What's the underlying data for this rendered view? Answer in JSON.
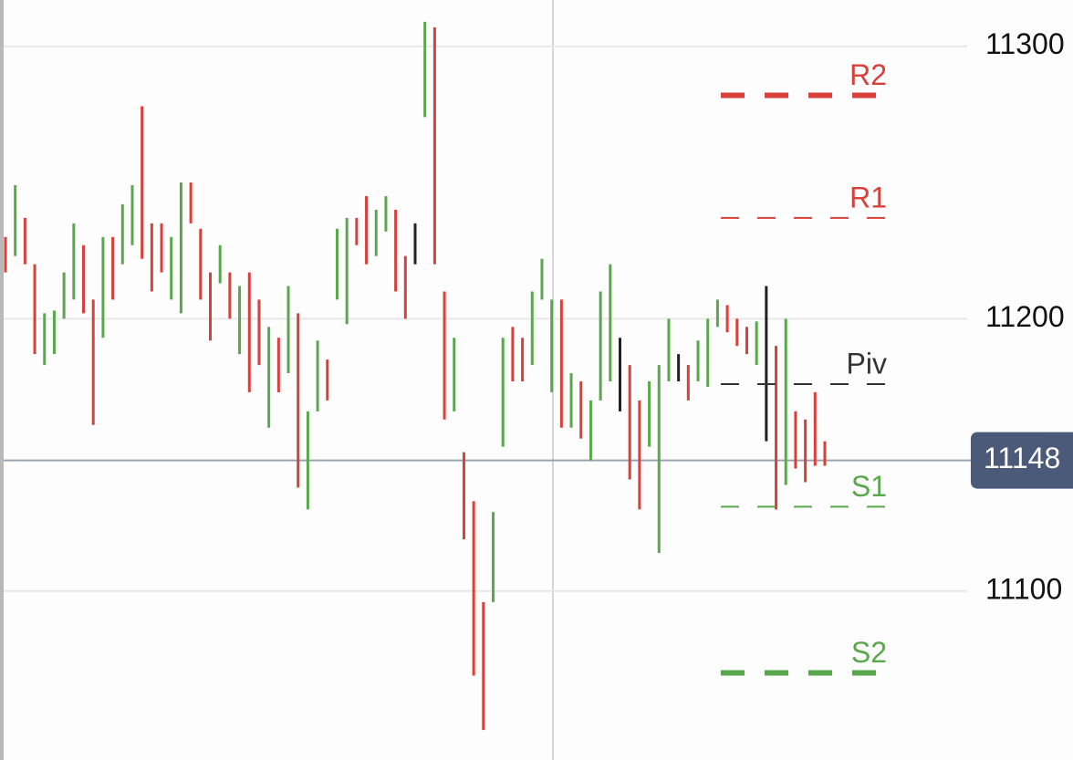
{
  "chart_data": {
    "type": "ohlc",
    "ylim": [
      11038,
      11317
    ],
    "yticks": [
      11100,
      11200,
      11300
    ],
    "grid": true,
    "palette": {
      "up": "#5aa84c",
      "down": "#d9403a",
      "flat": "#222222"
    },
    "bars": [
      {
        "high": 11230,
        "low": 11217,
        "dir": "down"
      },
      {
        "high": 11249,
        "low": 11223,
        "dir": "up"
      },
      {
        "high": 11237,
        "low": 11220,
        "dir": "down"
      },
      {
        "high": 11220,
        "low": 11187,
        "dir": "down"
      },
      {
        "high": 11202,
        "low": 11183,
        "dir": "up"
      },
      {
        "high": 11203,
        "low": 11187,
        "dir": "up"
      },
      {
        "high": 11217,
        "low": 11200,
        "dir": "up"
      },
      {
        "high": 11235,
        "low": 11207,
        "dir": "up"
      },
      {
        "high": 11227,
        "low": 11202,
        "dir": "down"
      },
      {
        "high": 11207,
        "low": 11161,
        "dir": "down"
      },
      {
        "high": 11230,
        "low": 11193,
        "dir": "up"
      },
      {
        "high": 11230,
        "low": 11207,
        "dir": "down"
      },
      {
        "high": 11242,
        "low": 11220,
        "dir": "up"
      },
      {
        "high": 11249,
        "low": 11227,
        "dir": "up"
      },
      {
        "high": 11278,
        "low": 11222,
        "dir": "down"
      },
      {
        "high": 11235,
        "low": 11210,
        "dir": "down"
      },
      {
        "high": 11235,
        "low": 11217,
        "dir": "down"
      },
      {
        "high": 11230,
        "low": 11207,
        "dir": "up"
      },
      {
        "high": 11250,
        "low": 11202,
        "dir": "up"
      },
      {
        "high": 11250,
        "low": 11235,
        "dir": "down"
      },
      {
        "high": 11233,
        "low": 11207,
        "dir": "down"
      },
      {
        "high": 11217,
        "low": 11192,
        "dir": "down"
      },
      {
        "high": 11227,
        "low": 11213,
        "dir": "up"
      },
      {
        "high": 11217,
        "low": 11200,
        "dir": "down"
      },
      {
        "high": 11212,
        "low": 11187,
        "dir": "up"
      },
      {
        "high": 11217,
        "low": 11173,
        "dir": "down"
      },
      {
        "high": 11207,
        "low": 11183,
        "dir": "down"
      },
      {
        "high": 11197,
        "low": 11160,
        "dir": "up"
      },
      {
        "high": 11193,
        "low": 11173,
        "dir": "down"
      },
      {
        "high": 11212,
        "low": 11180,
        "dir": "up"
      },
      {
        "high": 11202,
        "low": 11138,
        "dir": "down"
      },
      {
        "high": 11166,
        "low": 11130,
        "dir": "up"
      },
      {
        "high": 11192,
        "low": 11166,
        "dir": "up"
      },
      {
        "high": 11185,
        "low": 11170,
        "dir": "down"
      },
      {
        "high": 11233,
        "low": 11207,
        "dir": "up"
      },
      {
        "high": 11237,
        "low": 11198,
        "dir": "up"
      },
      {
        "high": 11237,
        "low": 11227,
        "dir": "down"
      },
      {
        "high": 11245,
        "low": 11220,
        "dir": "down"
      },
      {
        "high": 11240,
        "low": 11223,
        "dir": "up"
      },
      {
        "high": 11245,
        "low": 11232,
        "dir": "up"
      },
      {
        "high": 11240,
        "low": 11210,
        "dir": "down"
      },
      {
        "high": 11223,
        "low": 11200,
        "dir": "down"
      },
      {
        "high": 11235,
        "low": 11220,
        "dir": "flat"
      },
      {
        "high": 11309,
        "low": 11274,
        "dir": "up"
      },
      {
        "high": 11307,
        "low": 11220,
        "dir": "down"
      },
      {
        "high": 11210,
        "low": 11163,
        "dir": "down"
      },
      {
        "high": 11193,
        "low": 11166,
        "dir": "up"
      },
      {
        "high": 11151,
        "low": 11119,
        "dir": "down"
      },
      {
        "high": 11133,
        "low": 11069,
        "dir": "down"
      },
      {
        "high": 11096,
        "low": 11049,
        "dir": "down"
      },
      {
        "high": 11129,
        "low": 11096,
        "dir": "up"
      },
      {
        "high": 11193,
        "low": 11153,
        "dir": "up"
      },
      {
        "high": 11197,
        "low": 11177,
        "dir": "down"
      },
      {
        "high": 11193,
        "low": 11177,
        "dir": "down"
      },
      {
        "high": 11210,
        "low": 11183,
        "dir": "up"
      },
      {
        "high": 11222,
        "low": 11207,
        "dir": "up"
      },
      {
        "high": 11207,
        "low": 11173,
        "dir": "up"
      },
      {
        "high": 11207,
        "low": 11160,
        "dir": "down"
      },
      {
        "high": 11180,
        "low": 11160,
        "dir": "up"
      },
      {
        "high": 11177,
        "low": 11156,
        "dir": "down"
      },
      {
        "high": 11170,
        "low": 11148,
        "dir": "up"
      },
      {
        "high": 11210,
        "low": 11170,
        "dir": "up"
      },
      {
        "high": 11220,
        "low": 11177,
        "dir": "up"
      },
      {
        "high": 11193,
        "low": 11166,
        "dir": "flat"
      },
      {
        "high": 11183,
        "low": 11141,
        "dir": "down"
      },
      {
        "high": 11170,
        "low": 11130,
        "dir": "down"
      },
      {
        "high": 11177,
        "low": 11153,
        "dir": "up"
      },
      {
        "high": 11183,
        "low": 11114,
        "dir": "up"
      },
      {
        "high": 11200,
        "low": 11177,
        "dir": "up"
      },
      {
        "high": 11187,
        "low": 11177,
        "dir": "flat"
      },
      {
        "high": 11183,
        "low": 11170,
        "dir": "down"
      },
      {
        "high": 11192,
        "low": 11177,
        "dir": "up"
      },
      {
        "high": 11200,
        "low": 11175,
        "dir": "up"
      },
      {
        "high": 11207,
        "low": 11197,
        "dir": "up"
      },
      {
        "high": 11205,
        "low": 11195,
        "dir": "down"
      },
      {
        "high": 11200,
        "low": 11190,
        "dir": "down"
      },
      {
        "high": 11197,
        "low": 11187,
        "dir": "down"
      },
      {
        "high": 11199,
        "low": 11183,
        "dir": "up"
      },
      {
        "high": 11212,
        "low": 11155,
        "dir": "flat"
      },
      {
        "high": 11190,
        "low": 11130,
        "dir": "down"
      },
      {
        "high": 11200,
        "low": 11139,
        "dir": "up"
      },
      {
        "high": 11166,
        "low": 11145,
        "dir": "down"
      },
      {
        "high": 11163,
        "low": 11140,
        "dir": "down"
      },
      {
        "high": 11173,
        "low": 11146,
        "dir": "down"
      },
      {
        "high": 11155,
        "low": 11146,
        "dir": "down"
      }
    ],
    "levels": [
      {
        "label": "R2",
        "value": 11282,
        "color": "#d9403a",
        "thick": true
      },
      {
        "label": "R1",
        "value": 11237,
        "color": "#d9403a",
        "thick": false
      },
      {
        "label": "Piv",
        "value": 11176,
        "color": "#333333",
        "thick": false
      },
      {
        "label": "S1",
        "value": 11131,
        "color": "#5aa84c",
        "thick": false
      },
      {
        "label": "S2",
        "value": 11070,
        "color": "#5aa84c",
        "thick": true
      }
    ],
    "last_price": 11148
  }
}
